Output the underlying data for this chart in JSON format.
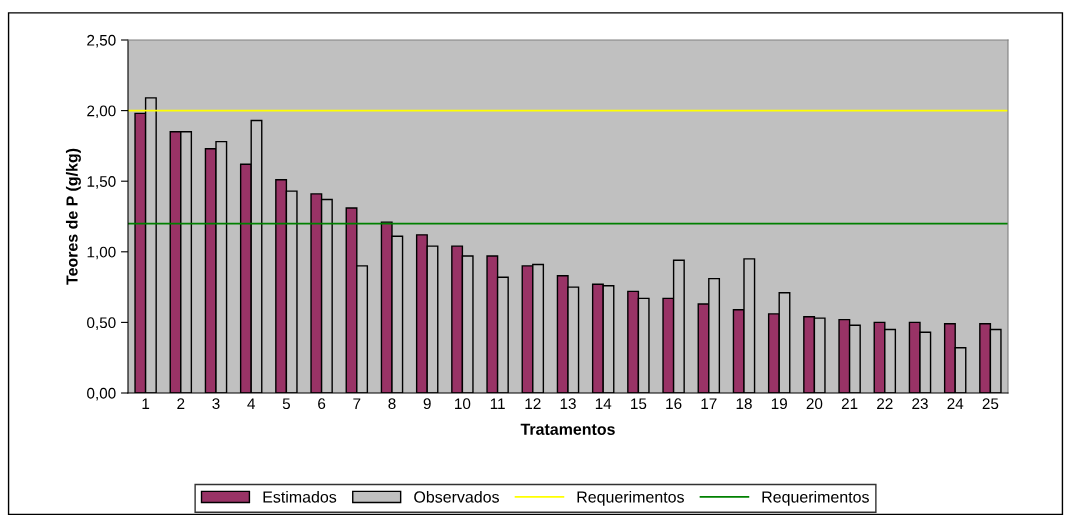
{
  "chart_data": {
    "type": "bar",
    "xlabel": "Tratamentos",
    "ylabel": "Teores de P (g/kg)",
    "categories": [
      "1",
      "2",
      "3",
      "4",
      "5",
      "6",
      "7",
      "8",
      "9",
      "10",
      "11",
      "12",
      "13",
      "14",
      "15",
      "16",
      "17",
      "18",
      "19",
      "20",
      "21",
      "22",
      "23",
      "24",
      "25"
    ],
    "series": [
      {
        "name": "Estimados",
        "color": "#993366",
        "values": [
          1.98,
          1.85,
          1.73,
          1.62,
          1.51,
          1.41,
          1.31,
          1.21,
          1.12,
          1.04,
          0.97,
          0.9,
          0.83,
          0.77,
          0.72,
          0.67,
          0.63,
          0.59,
          0.56,
          0.54,
          0.52,
          0.5,
          0.5,
          0.49,
          0.49
        ]
      },
      {
        "name": "Observados",
        "color": "#c0c0c0",
        "values": [
          2.09,
          1.85,
          1.78,
          1.93,
          1.43,
          1.37,
          0.9,
          1.11,
          1.04,
          0.97,
          0.82,
          0.91,
          0.75,
          0.76,
          0.67,
          0.94,
          0.81,
          0.95,
          0.71,
          0.53,
          0.48,
          0.45,
          0.43,
          0.32,
          0.45
        ]
      }
    ],
    "ref_lines": [
      {
        "axis": "y",
        "value": 2.0,
        "label": "Requerimentos",
        "color": "#ffff00"
      },
      {
        "axis": "y",
        "value": 1.2,
        "label": "Requerimentos",
        "color": "#008000"
      }
    ],
    "ylim": [
      0,
      2.5
    ],
    "yticks": [
      {
        "value": 0,
        "label": "0,00"
      },
      {
        "value": 0.5,
        "label": "0,50"
      },
      {
        "value": 1.0,
        "label": "1,00"
      },
      {
        "value": 1.5,
        "label": "1,50"
      },
      {
        "value": 2.0,
        "label": "2,00"
      },
      {
        "value": 2.5,
        "label": "2,50"
      }
    ],
    "grid": false,
    "legend": "bottom"
  }
}
